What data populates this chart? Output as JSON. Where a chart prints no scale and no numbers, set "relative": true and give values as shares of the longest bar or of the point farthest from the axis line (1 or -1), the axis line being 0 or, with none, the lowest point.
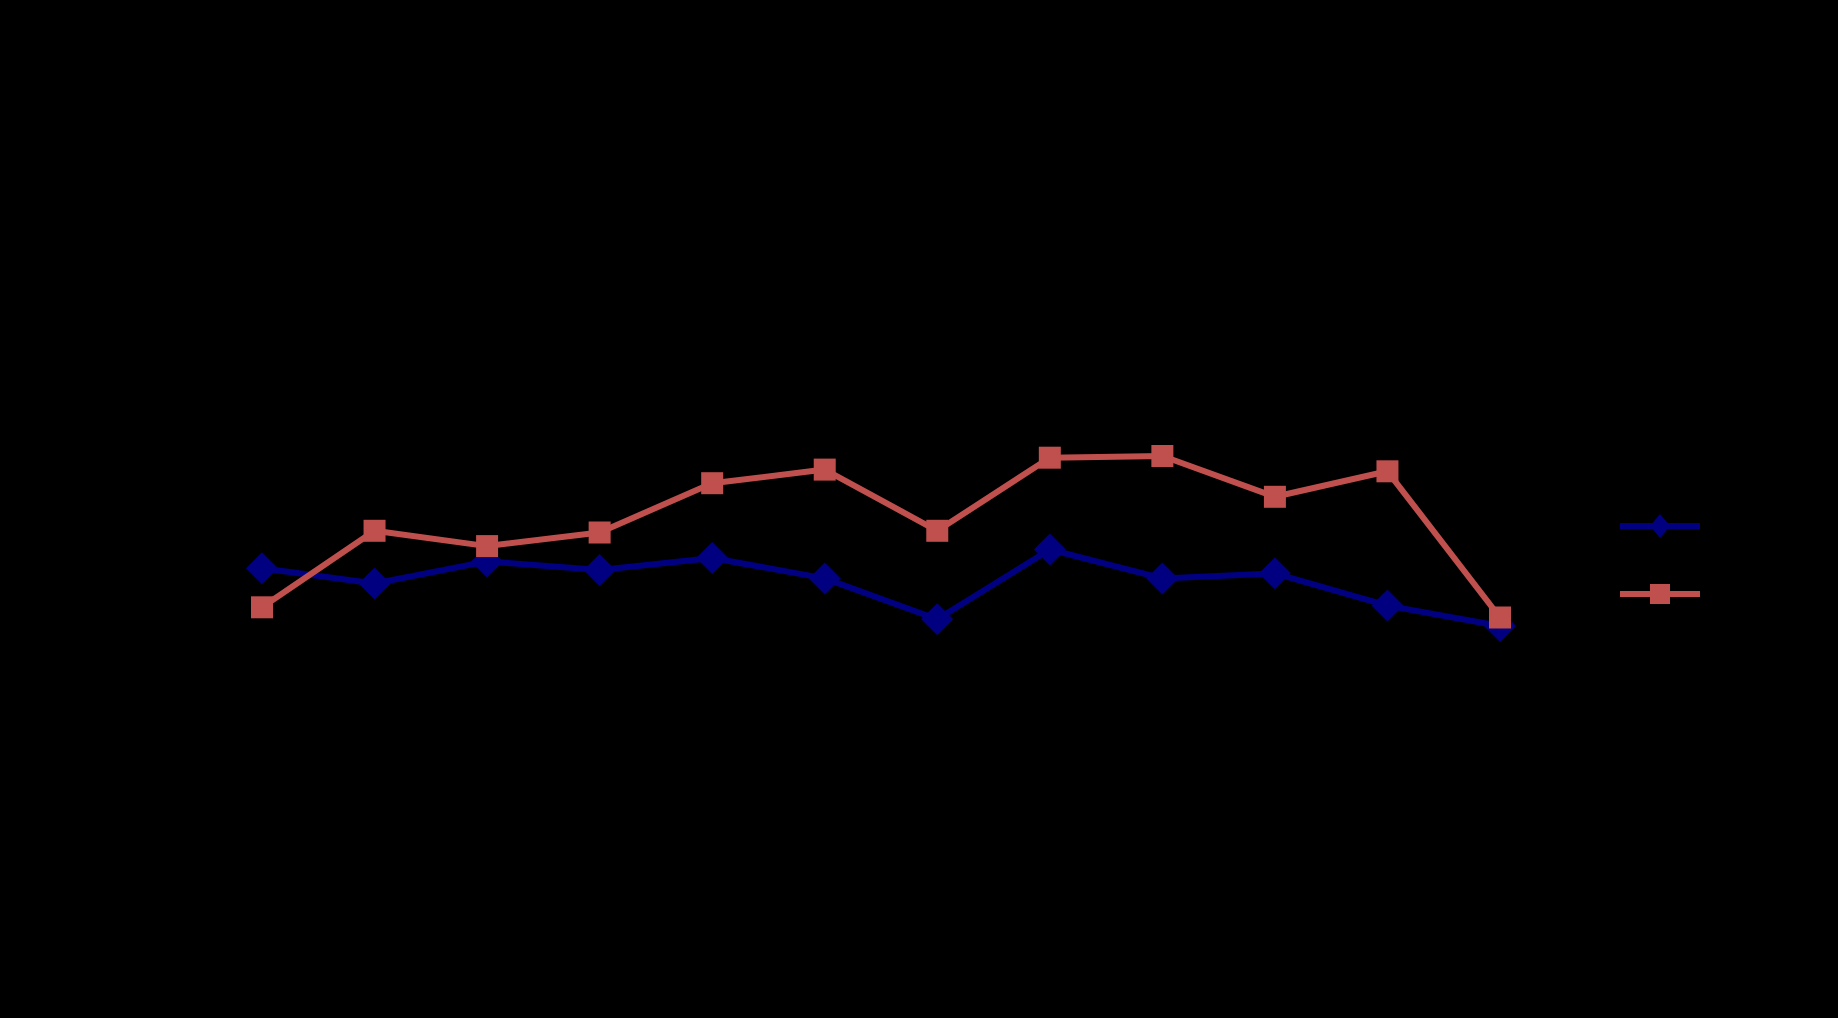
{
  "chart_data": {
    "type": "line",
    "relative": true,
    "categories": [
      null,
      null,
      null,
      null,
      null,
      null,
      null,
      null,
      null,
      null,
      null,
      null
    ],
    "series": [
      {
        "color": "#000080",
        "marker": "diamond",
        "values": [
          0.34,
          0.25,
          0.38,
          0.33,
          0.4,
          0.28,
          0.04,
          0.45,
          0.28,
          0.31,
          0.12,
          0
        ]
      },
      {
        "color": "#c0504d",
        "marker": "square",
        "values": [
          0.11,
          0.56,
          0.47,
          0.55,
          0.84,
          0.92,
          0.56,
          0.99,
          1,
          0.76,
          0.91,
          0.05
        ]
      }
    ],
    "grid": false
  }
}
